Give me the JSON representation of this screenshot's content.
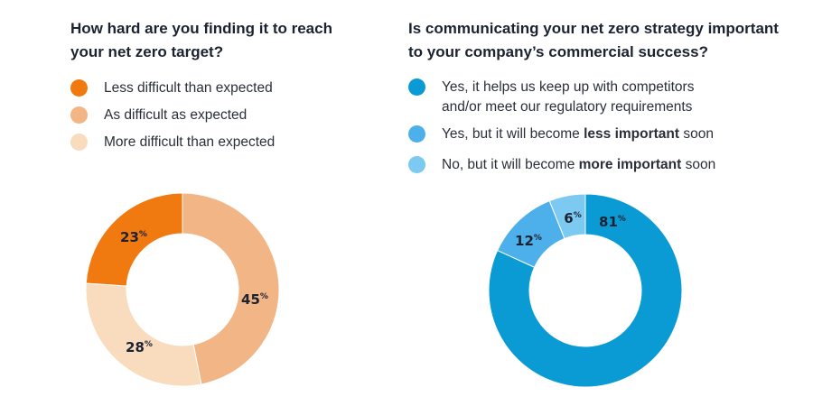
{
  "colors": {
    "less_difficult": "#f07a10",
    "as_difficult": "#f2b585",
    "more_difficult": "#f9dcbd",
    "yes_helps": "#0a9bd4",
    "less_important": "#4db0ea",
    "more_important": "#7cc9f2"
  },
  "left": {
    "title_line1": "How hard are you finding it to reach",
    "title_line2": "your net zero target?",
    "legend": [
      {
        "label": "Less difficult than expected"
      },
      {
        "label": "As difficult as expected"
      },
      {
        "label": "More difficult than expected"
      }
    ]
  },
  "right": {
    "title_line1": "Is communicating your net zero strategy important",
    "title_line2": "to your company’s commercial success?",
    "legend": [
      {
        "line1": "Yes, it helps us keep up with competitors",
        "line2": "and/or meet our regulatory requirements"
      },
      {
        "pre": "Yes, but it will become ",
        "bold": "less important",
        "post": " soon"
      },
      {
        "pre": "No, but it will become ",
        "bold": "more important",
        "post": " soon"
      }
    ]
  },
  "chart_data": [
    {
      "type": "pie",
      "title": "How hard are you finding it to reach your net zero target?",
      "categories": [
        "As difficult as expected",
        "More difficult than expected",
        "Less difficult than expected"
      ],
      "values": [
        45,
        28,
        23
      ],
      "colors": [
        "#f2b585",
        "#f9dcbd",
        "#f07a10"
      ],
      "labels": [
        "45",
        "28",
        "23"
      ],
      "unit": "%"
    },
    {
      "type": "pie",
      "title": "Is communicating your net zero strategy important to your company’s commercial success?",
      "categories": [
        "Yes, it helps us keep up with competitors and/or meet our regulatory requirements",
        "Yes, but it will become less important soon",
        "No, but it will become more important soon"
      ],
      "values": [
        81,
        12,
        6
      ],
      "colors": [
        "#0a9bd4",
        "#4db0ea",
        "#7cc9f2"
      ],
      "labels": [
        "81",
        "12",
        "6"
      ],
      "unit": "%"
    }
  ]
}
